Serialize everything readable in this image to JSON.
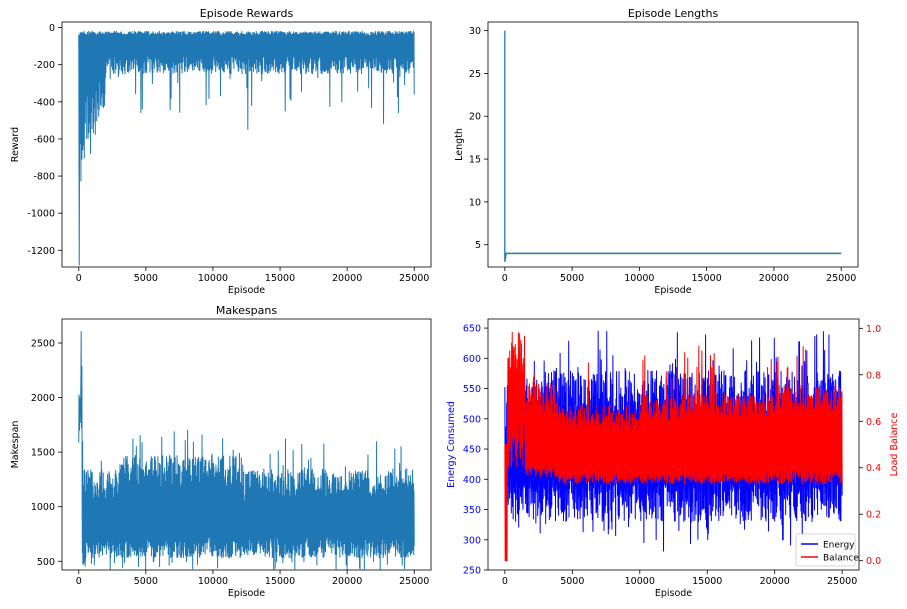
{
  "chart_data": [
    {
      "type": "line",
      "title": "Episode Rewards",
      "xlabel": "Episode",
      "ylabel": "Reward",
      "xlim": [
        -1250,
        26250
      ],
      "ylim": [
        -1290,
        30
      ],
      "xticks": [
        0,
        5000,
        10000,
        15000,
        20000,
        25000
      ],
      "yticks": [
        0,
        -200,
        -400,
        -600,
        -800,
        -1000,
        -1200
      ],
      "series": [
        {
          "name": "Reward",
          "color": "#1f77b4",
          "description_values": {
            "episodes": [
              0,
              25000
            ],
            "min": -1280,
            "typical_low": -200,
            "typical_high": -20
          }
        }
      ]
    },
    {
      "type": "line",
      "title": "Episode Lengths",
      "xlabel": "Episode",
      "ylabel": "Length",
      "xlim": [
        -1250,
        26250
      ],
      "ylim": [
        2.4,
        31
      ],
      "xticks": [
        0,
        5000,
        10000,
        15000,
        20000,
        25000
      ],
      "yticks": [
        5,
        10,
        15,
        20,
        25,
        30
      ],
      "series": [
        {
          "name": "Length",
          "color": "#1f77b4",
          "color2": "#2ca02c",
          "x": [
            0,
            0,
            100,
            25000
          ],
          "y": [
            30,
            3,
            4,
            4
          ]
        }
      ]
    },
    {
      "type": "line",
      "title": "Makespans",
      "xlabel": "Episode",
      "ylabel": "Makespan",
      "xlim": [
        -1250,
        26250
      ],
      "ylim": [
        420,
        2720
      ],
      "xticks": [
        0,
        5000,
        10000,
        15000,
        20000,
        25000
      ],
      "yticks": [
        500,
        1000,
        1500,
        2000,
        2500
      ],
      "series": [
        {
          "name": "Makespan",
          "color": "#1f77b4",
          "description_values": {
            "max": 2680,
            "typical_low": 550,
            "typical_high": 1350
          }
        }
      ]
    },
    {
      "type": "line",
      "title": "",
      "xlabel": "Episode",
      "ylabel": "Energy Consumed",
      "ylabel_right": "Load Balance",
      "xlim": [
        -1250,
        26250
      ],
      "ylim": [
        250,
        665
      ],
      "ylim_right": [
        -0.04,
        1.04
      ],
      "xticks": [
        0,
        5000,
        10000,
        15000,
        20000,
        25000
      ],
      "yticks": [
        250,
        300,
        350,
        400,
        450,
        500,
        550,
        600,
        650
      ],
      "yticks_right": [
        0.0,
        0.2,
        0.4,
        0.6,
        0.8,
        1.0
      ],
      "legend": {
        "placement": "lower-right",
        "entries": [
          "Energy",
          "Balance"
        ]
      },
      "series": [
        {
          "name": "Energy",
          "color": "#0000ff",
          "axis": "left",
          "description_values": {
            "typical_low": 340,
            "typical_high": 580
          }
        },
        {
          "name": "Balance",
          "color": "#ff0000",
          "axis": "right",
          "description_values": {
            "typical_low": 0.33,
            "typical_high": 0.75
          }
        }
      ]
    }
  ]
}
